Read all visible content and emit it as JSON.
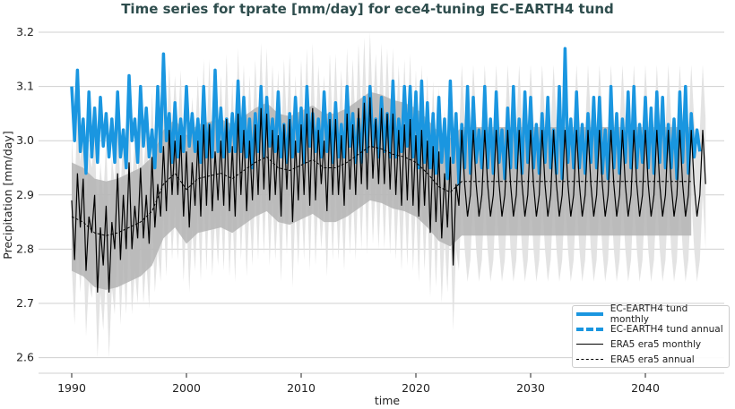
{
  "chart_data": {
    "type": "line",
    "title": "Time series for tprate [mm/day] for ece4-tuning EC-EARTH4 tund",
    "xlabel": "time",
    "ylabel": "Precipitation [mm/day]",
    "xlim": [
      1987.3,
      2046.5
    ],
    "ylim": [
      2.56,
      3.21
    ],
    "xticks": [
      1990,
      2000,
      2010,
      2020,
      2030,
      2040
    ],
    "yticks": [
      2.6,
      2.7,
      2.8,
      2.9,
      3.0,
      3.1,
      3.2
    ],
    "grid": "horizontal",
    "legend_position": "bottom-right",
    "colors": {
      "model": "#1a96e0",
      "era5": "#000000",
      "band_dark": "#b4b4b4",
      "band_light": "#e0e0e0",
      "title": "#2e4d4d"
    },
    "model_monthly": {
      "name": "EC-EARTH4 tund monthly",
      "start": 1990,
      "step_years": 0.25,
      "values": [
        3.1,
        3.0,
        3.13,
        2.98,
        3.04,
        2.94,
        3.09,
        2.97,
        3.06,
        2.96,
        3.08,
        2.99,
        3.05,
        2.97,
        3.04,
        2.96,
        3.09,
        2.97,
        3.02,
        2.95,
        3.12,
        3.0,
        3.04,
        2.96,
        3.1,
        2.99,
        3.06,
        2.97,
        3.02,
        2.95,
        3.1,
        2.98,
        3.16,
        3.0,
        3.05,
        2.96,
        3.07,
        2.97,
        3.04,
        2.98,
        3.1,
        2.99,
        3.05,
        2.98,
        3.04,
        2.96,
        3.1,
        2.97,
        3.03,
        2.97,
        3.13,
        2.98,
        3.06,
        2.97,
        3.04,
        2.98,
        3.05,
        2.98,
        3.11,
        2.98,
        3.08,
        2.97,
        3.04,
        2.95,
        3.05,
        2.98,
        3.1,
        2.97,
        3.08,
        2.99,
        3.04,
        2.98,
        3.09,
        2.97,
        3.03,
        2.96,
        3.05,
        2.97,
        3.08,
        2.98,
        3.06,
        2.96,
        3.1,
        2.99,
        3.05,
        2.98,
        3.04,
        2.97,
        3.09,
        2.98,
        3.05,
        2.96,
        3.07,
        2.97,
        3.03,
        2.97,
        3.1,
        2.99,
        3.05,
        2.96,
        3.04,
        2.96,
        3.08,
        2.98,
        3.1,
        2.99,
        3.04,
        2.97,
        3.08,
        2.98,
        3.05,
        2.97,
        3.11,
        2.97,
        3.04,
        2.98,
        3.1,
        2.99,
        3.1,
        2.97,
        3.09,
        2.95,
        3.11,
        2.96,
        3.07,
        2.95,
        3.05,
        2.94,
        3.08,
        2.96,
        3.04,
        2.93,
        3.11,
        2.96,
        3.05,
        2.92,
        3.03,
        2.95,
        3.1,
        2.94,
        3.08,
        2.96,
        3.02,
        2.95,
        3.1,
        2.95,
        3.04,
        2.94,
        3.09,
        2.96,
        3.02,
        2.93,
        3.06,
        2.95,
        3.1,
        2.95,
        3.04,
        2.94,
        3.09,
        2.96,
        3.08,
        2.95,
        3.03,
        2.94,
        3.05,
        2.96,
        3.08,
        2.95,
        3.02,
        2.94,
        3.1,
        2.93,
        3.17,
        2.96,
        3.04,
        2.95,
        3.09,
        2.95,
        3.03,
        2.94,
        3.05,
        2.96,
        3.08,
        2.95,
        3.08,
        2.94,
        3.02,
        2.93,
        3.1,
        2.95,
        3.05,
        2.94,
        3.04,
        2.96,
        3.09,
        2.95,
        3.1,
        2.95,
        3.03,
        2.96,
        3.08,
        2.95,
        3.06,
        2.94,
        3.09,
        2.96,
        3.08,
        2.95,
        3.03,
        2.95,
        3.04,
        2.93,
        3.09,
        2.96,
        3.1,
        2.94,
        3.05,
        2.97,
        3.02,
        2.98
      ]
    },
    "model_annual": {
      "name": "EC-EARTH4 tund annual"
    },
    "era5_monthly": {
      "name": "ERA5 era5 monthly",
      "start": 1990,
      "step_years": 0.25,
      "spread": 0.12,
      "values": [
        2.89,
        2.78,
        2.94,
        2.84,
        2.93,
        2.76,
        2.86,
        2.83,
        2.9,
        2.72,
        2.84,
        2.77,
        2.88,
        2.72,
        2.85,
        2.8,
        2.94,
        2.78,
        2.9,
        2.8,
        2.96,
        2.8,
        2.88,
        2.82,
        2.95,
        2.82,
        2.9,
        2.81,
        2.97,
        2.84,
        2.92,
        2.86,
        2.99,
        2.87,
        3.02,
        2.9,
        3.0,
        2.9,
        3.01,
        2.86,
        2.98,
        2.84,
        2.96,
        2.88,
        3.0,
        2.86,
        3.03,
        2.88,
        3.03,
        2.87,
        2.98,
        2.89,
        3.0,
        2.88,
        3.04,
        2.87,
        2.99,
        2.86,
        3.05,
        2.9,
        3.02,
        2.87,
        3.0,
        2.89,
        3.03,
        2.9,
        3.06,
        2.91,
        3.05,
        2.89,
        3.02,
        2.9,
        3.01,
        2.86,
        3.03,
        2.91,
        3.04,
        2.85,
        3.0,
        2.89,
        3.03,
        2.9,
        3.05,
        2.88,
        3.06,
        2.89,
        3.02,
        2.92,
        3.0,
        2.87,
        3.04,
        2.9,
        3.04,
        2.9,
        3.01,
        2.88,
        3.05,
        2.91,
        3.03,
        2.9,
        3.06,
        2.92,
        3.07,
        2.91,
        3.08,
        2.93,
        3.04,
        2.92,
        3.06,
        2.92,
        3.05,
        2.91,
        3.05,
        2.9,
        3.02,
        2.88,
        3.03,
        2.89,
        3.04,
        2.88,
        3.01,
        2.86,
        3.02,
        2.88,
        3.0,
        2.83,
        2.99,
        2.85,
        2.98,
        2.82,
        2.94,
        2.84,
        2.97,
        2.77,
        2.92,
        2.88,
        3.02,
        2.92,
        2.86,
        2.9,
        3.02,
        2.92,
        2.86,
        2.9,
        3.02,
        2.92,
        2.86,
        2.9,
        3.02,
        2.92,
        2.86,
        2.9,
        3.02,
        2.92,
        2.86,
        2.9,
        3.02,
        2.92,
        2.86,
        2.9,
        3.02,
        2.92,
        2.86,
        2.9,
        3.02,
        2.92,
        2.86,
        2.9,
        3.02,
        2.92,
        2.86,
        2.9,
        3.02,
        2.92,
        2.86,
        2.9,
        3.02,
        2.92,
        2.86,
        2.9,
        3.02,
        2.92,
        2.86,
        2.9,
        3.02,
        2.92,
        2.86,
        2.9,
        3.02,
        2.92,
        2.86,
        2.9,
        3.02,
        2.92,
        2.86,
        2.9,
        3.02,
        2.92,
        2.86,
        2.9,
        3.02,
        2.92,
        2.86,
        2.9,
        3.02,
        2.92,
        2.86,
        2.9,
        3.02,
        2.92,
        2.86,
        2.9,
        3.02,
        2.92,
        2.86,
        2.9,
        3.02,
        2.92,
        2.86,
        2.9,
        3.02,
        2.92
      ]
    },
    "era5_annual": {
      "name": "ERA5 era5 annual",
      "start": 1990,
      "step_years": 1,
      "values": [
        2.86,
        2.85,
        2.83,
        2.825,
        2.83,
        2.84,
        2.85,
        2.87,
        2.92,
        2.94,
        2.91,
        2.93,
        2.935,
        2.94,
        2.93,
        2.945,
        2.96,
        2.97,
        2.95,
        2.945,
        2.955,
        2.965,
        2.95,
        2.95,
        2.96,
        2.975,
        2.99,
        2.985,
        2.975,
        2.97,
        2.96,
        2.94,
        2.915,
        2.905,
        2.925,
        2.925,
        2.925,
        2.925,
        2.925,
        2.925,
        2.925,
        2.925,
        2.925,
        2.925,
        2.925,
        2.925,
        2.925,
        2.925,
        2.925,
        2.925,
        2.925,
        2.925,
        2.925,
        2.925,
        2.925
      ],
      "std": 0.1
    }
  }
}
